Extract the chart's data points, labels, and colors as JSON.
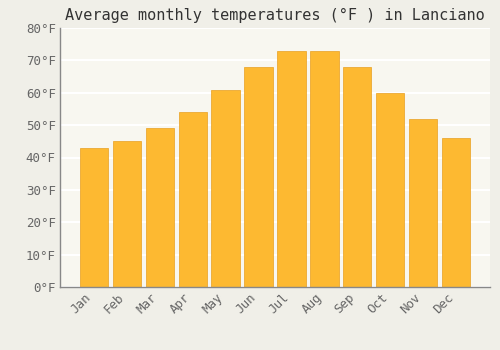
{
  "title": "Average monthly temperatures (°F ) in Lanciano",
  "months": [
    "Jan",
    "Feb",
    "Mar",
    "Apr",
    "May",
    "Jun",
    "Jul",
    "Aug",
    "Sep",
    "Oct",
    "Nov",
    "Dec"
  ],
  "values": [
    43,
    45,
    49,
    54,
    61,
    68,
    73,
    73,
    68,
    60,
    52,
    46
  ],
  "bar_color_main": "#FDB931",
  "bar_color_edge": "#E8A020",
  "background_color": "#F0EFE8",
  "plot_background": "#F8F7F0",
  "ylim": [
    0,
    80
  ],
  "ytick_step": 10,
  "grid_color": "#FFFFFF",
  "grid_linewidth": 1.5,
  "title_fontsize": 11,
  "tick_fontsize": 9,
  "bar_width": 0.85
}
